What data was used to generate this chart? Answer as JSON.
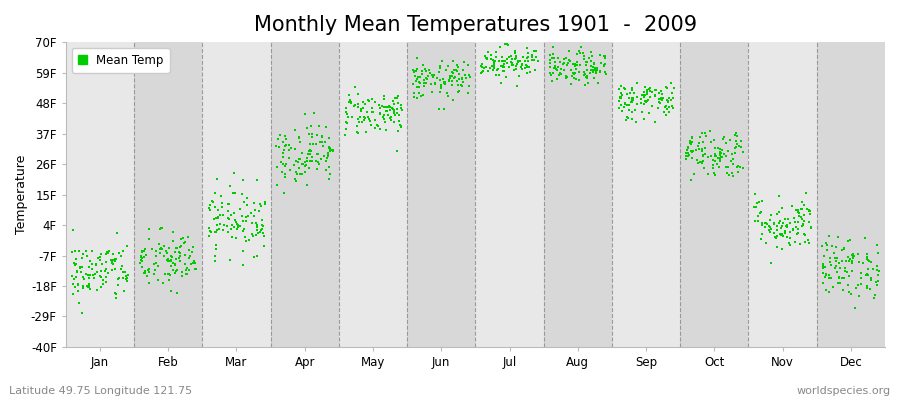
{
  "title": "Monthly Mean Temperatures 1901  -  2009",
  "ylabel": "Temperature",
  "xlabel_bottom_left": "Latitude 49.75 Longitude 121.75",
  "xlabel_bottom_right": "worldspecies.org",
  "yticks": [
    -40,
    -29,
    -18,
    -7,
    4,
    15,
    26,
    37,
    48,
    59,
    70
  ],
  "ytick_labels": [
    "-40F",
    "-29F",
    "-18F",
    "-7F",
    "4F",
    "15F",
    "26F",
    "37F",
    "48F",
    "59F",
    "70F"
  ],
  "ylim": [
    -40,
    70
  ],
  "months": [
    "Jan",
    "Feb",
    "Mar",
    "Apr",
    "May",
    "Jun",
    "Jul",
    "Aug",
    "Sep",
    "Oct",
    "Nov",
    "Dec"
  ],
  "mean_temps_F": [
    -13.0,
    -9.0,
    6.0,
    30.0,
    44.5,
    56.0,
    63.0,
    60.5,
    49.0,
    30.0,
    4.5,
    -11.5
  ],
  "std_temps_F": [
    5.5,
    5.5,
    6.0,
    5.5,
    4.0,
    3.5,
    3.0,
    3.0,
    3.5,
    4.5,
    5.0,
    5.5
  ],
  "n_years": 109,
  "marker_color": "#00CC00",
  "marker_size": 4,
  "background_color": "#ffffff",
  "plot_bg_color": "#e8e8e8",
  "alt_band_color": "#d8d8d8",
  "grid_color": "#888888",
  "title_fontsize": 15,
  "legend_label": "Mean Temp",
  "seed": 42
}
